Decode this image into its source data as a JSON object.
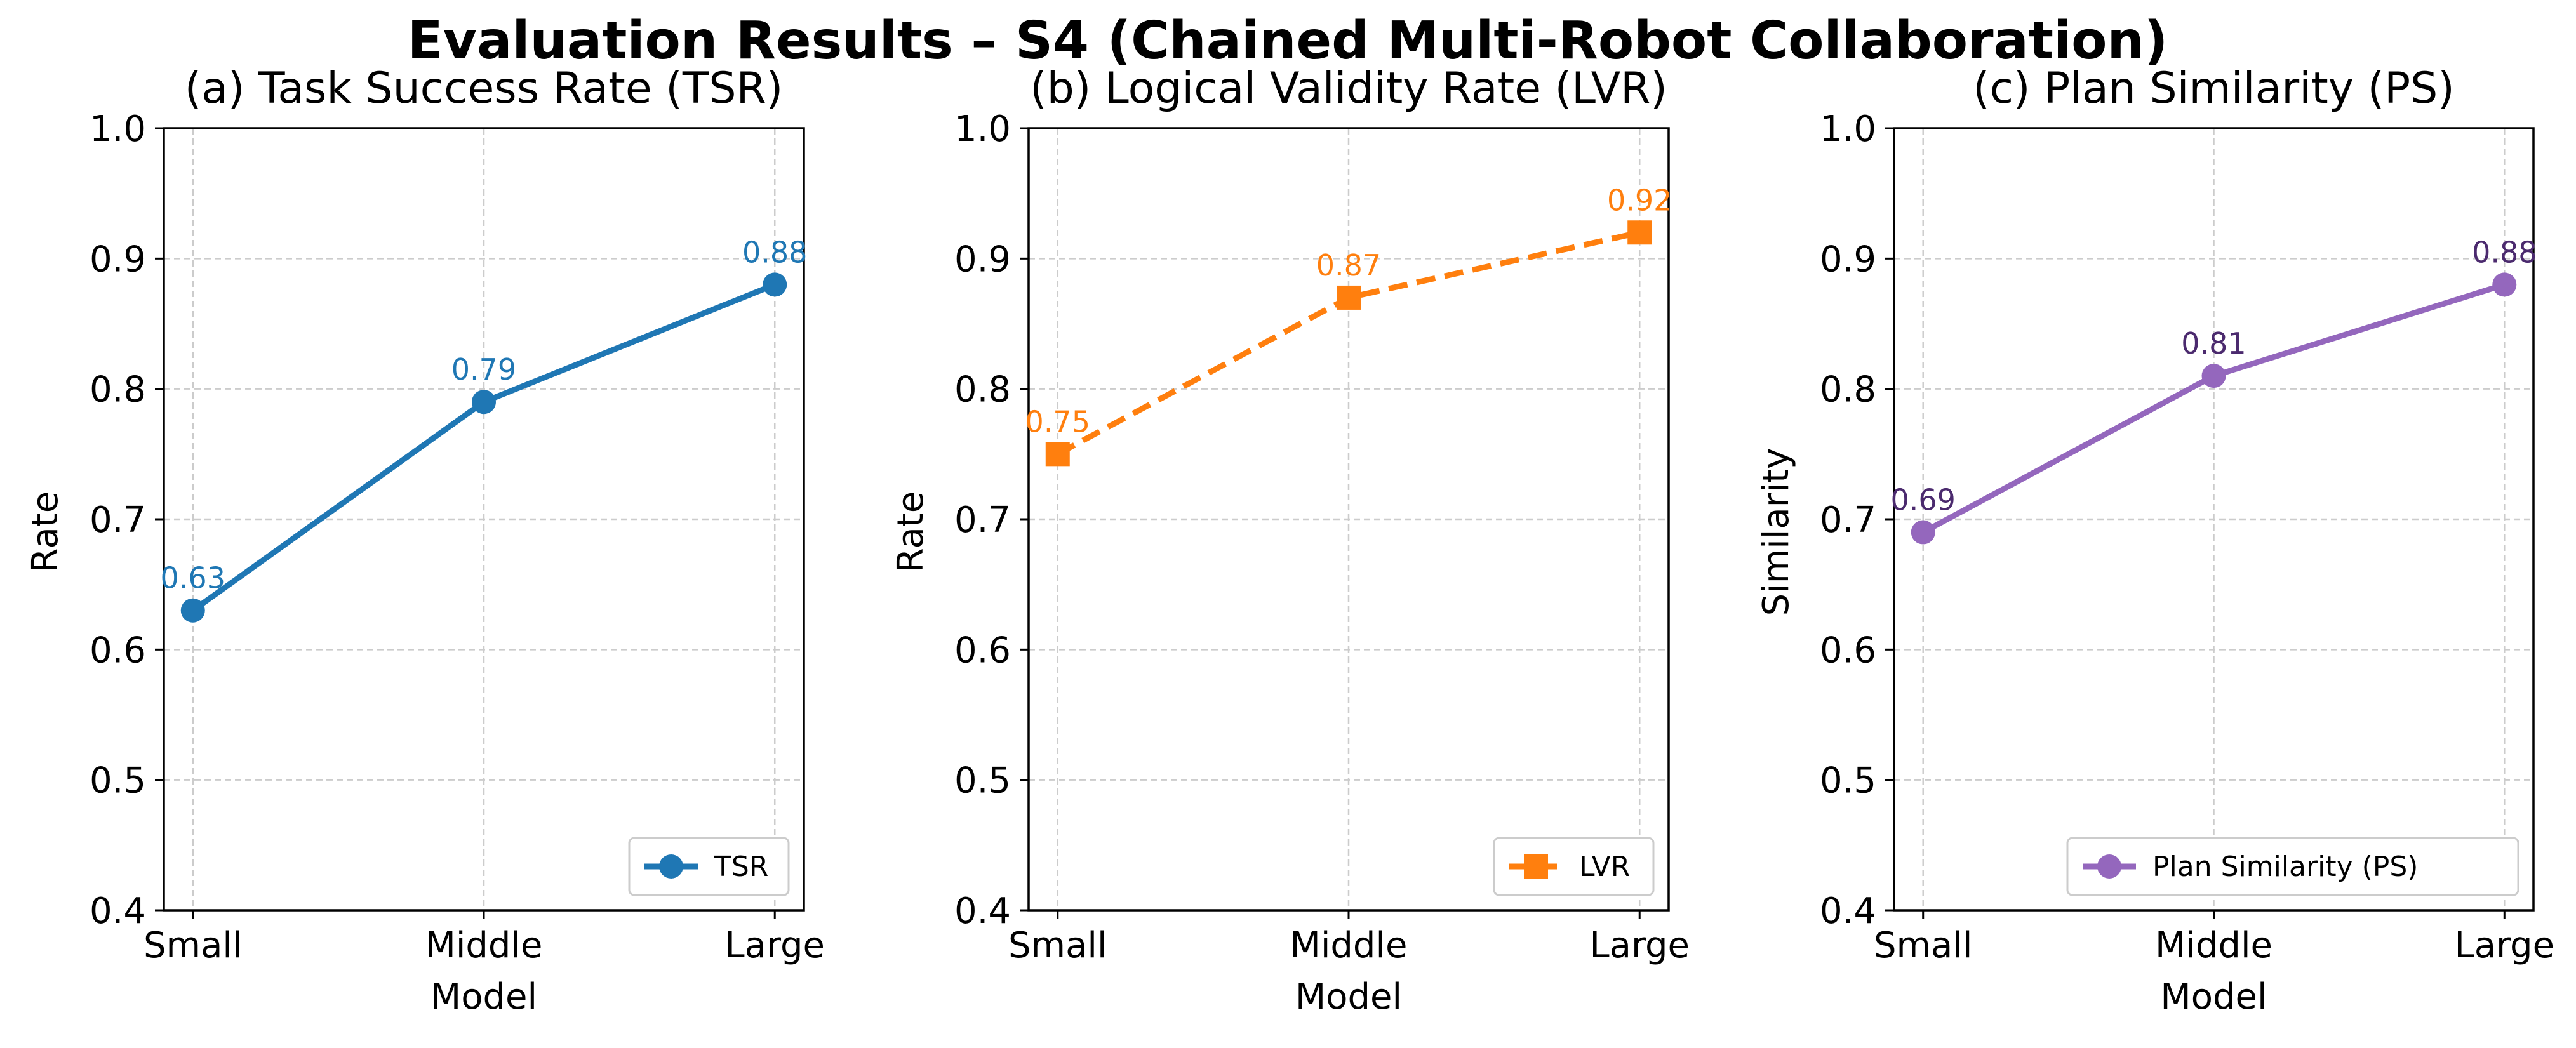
{
  "figure": {
    "title": "Evaluation Results – S4 (Chained Multi-Robot Collaboration)"
  },
  "chart_data": [
    {
      "type": "line",
      "title": "(a) Task Success Rate (TSR)",
      "xlabel": "Model",
      "ylabel": "Rate",
      "categories": [
        "Small",
        "Middle",
        "Large"
      ],
      "series": [
        {
          "name": "TSR",
          "values": [
            0.63,
            0.79,
            0.88
          ]
        }
      ],
      "data_labels": [
        "0.63",
        "0.79",
        "0.88"
      ],
      "ylim": [
        0.4,
        1.0
      ],
      "yticks": [
        "0.4",
        "0.5",
        "0.6",
        "0.7",
        "0.8",
        "0.9",
        "1.0"
      ],
      "grid": true,
      "legend_position": "lower-right",
      "marker": "circle",
      "line_style": "solid",
      "color": "#1f77b4",
      "label_color": "#1f77b4"
    },
    {
      "type": "line",
      "title": "(b) Logical Validity Rate (LVR)",
      "xlabel": "Model",
      "ylabel": "Rate",
      "categories": [
        "Small",
        "Middle",
        "Large"
      ],
      "series": [
        {
          "name": "LVR",
          "values": [
            0.75,
            0.87,
            0.92
          ]
        }
      ],
      "data_labels": [
        "0.75",
        "0.87",
        "0.92"
      ],
      "ylim": [
        0.4,
        1.0
      ],
      "yticks": [
        "0.4",
        "0.5",
        "0.6",
        "0.7",
        "0.8",
        "0.9",
        "1.0"
      ],
      "grid": true,
      "legend_position": "lower-right",
      "marker": "square",
      "line_style": "dashed",
      "color": "#ff7f0e",
      "label_color": "#ff7f0e"
    },
    {
      "type": "line",
      "title": "(c) Plan Similarity (PS)",
      "xlabel": "Model",
      "ylabel": "Similarity",
      "categories": [
        "Small",
        "Middle",
        "Large"
      ],
      "series": [
        {
          "name": "Plan Similarity (PS)",
          "values": [
            0.69,
            0.81,
            0.88
          ]
        }
      ],
      "data_labels": [
        "0.69",
        "0.81",
        "0.88"
      ],
      "ylim": [
        0.4,
        1.0
      ],
      "yticks": [
        "0.4",
        "0.5",
        "0.6",
        "0.7",
        "0.8",
        "0.9",
        "1.0"
      ],
      "grid": true,
      "legend_position": "lower-right",
      "marker": "circle",
      "line_style": "solid",
      "color": "#9467bd",
      "label_color": "#4b2a6e"
    }
  ]
}
